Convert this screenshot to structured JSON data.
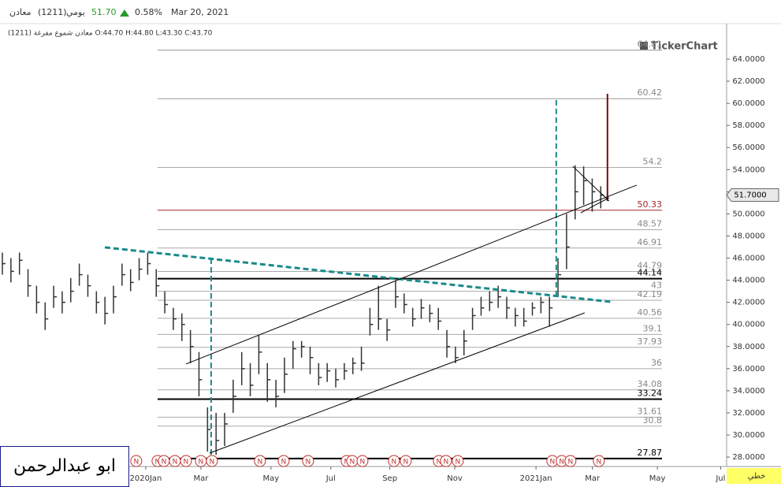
{
  "header": {
    "symbol": "معادن",
    "code": "(1211)",
    "period": "يومي",
    "price": "51.70",
    "change": "0.58%",
    "date": "Mar 20, 2021",
    "ohlc": "معادن شموع مفرغة (1211) O:44.70 H:44.80 L:43.30 C:43.70",
    "watermark": "TickerChart",
    "chart_style": "خطي",
    "author": "ابو عبدالرحمن"
  },
  "chart_data": {
    "type": "ohlc",
    "color": "#333333",
    "close": [
      45.5,
      44.8,
      45.8,
      43.5,
      42.0,
      40.5,
      42.5,
      42.0,
      43.0,
      44.5,
      43.5,
      42.0,
      41.0,
      42.5,
      44.5,
      43.8,
      45.0,
      45.5,
      43.5,
      41.8,
      40.5,
      40.0,
      38.0,
      35.0,
      30.5,
      29.5,
      31.0,
      33.5,
      36.0,
      34.5,
      37.5,
      35.0,
      33.5,
      35.5,
      37.8,
      38.0,
      37.0,
      35.2,
      35.8,
      35.0,
      35.8,
      36.5,
      36.5,
      40.0,
      40.5,
      39.5,
      42.5,
      41.8,
      40.5,
      41.5,
      41.0,
      40.3,
      38.0,
      37.0,
      38.5,
      40.8,
      41.5,
      42.0,
      42.5,
      41.5,
      40.8,
      40.3,
      41.5,
      42.0,
      41.5,
      44.5,
      47.0,
      52.0,
      53.0,
      52.0,
      51.7
    ],
    "high": [
      46.5,
      46.0,
      46.5,
      45.0,
      43.5,
      42.0,
      43.5,
      43.0,
      44.2,
      45.5,
      44.5,
      43.0,
      42.5,
      43.5,
      45.5,
      45.0,
      46.0,
      46.5,
      45.0,
      43.0,
      41.5,
      41.0,
      39.5,
      37.5,
      32.5,
      32.0,
      32.0,
      35.0,
      37.5,
      36.5,
      39.0,
      36.5,
      35.0,
      37.0,
      38.5,
      38.5,
      38.0,
      36.5,
      36.5,
      36.0,
      36.5,
      37.0,
      38.0,
      41.5,
      43.5,
      40.5,
      44.0,
      42.8,
      41.5,
      42.3,
      41.8,
      41.5,
      39.5,
      38.0,
      39.5,
      41.5,
      42.5,
      43.0,
      43.5,
      42.5,
      41.5,
      41.5,
      42.0,
      42.5,
      42.5,
      46.0,
      50.0,
      54.4,
      54.3,
      53.2,
      52.5
    ],
    "low": [
      44.5,
      43.8,
      44.5,
      42.5,
      41.0,
      39.5,
      41.5,
      41.0,
      42.0,
      43.5,
      42.5,
      41.0,
      40.0,
      41.0,
      43.5,
      43.0,
      44.0,
      44.5,
      42.5,
      41.0,
      39.5,
      38.5,
      36.5,
      33.5,
      28.5,
      28.2,
      29.0,
      32.0,
      34.5,
      33.5,
      35.5,
      33.0,
      32.5,
      33.8,
      36.0,
      37.0,
      35.5,
      34.5,
      34.8,
      34.3,
      35.0,
      35.5,
      35.8,
      39.0,
      39.5,
      38.5,
      41.5,
      41.0,
      39.8,
      40.5,
      40.2,
      39.5,
      37.0,
      36.5,
      37.2,
      39.5,
      40.8,
      41.2,
      41.5,
      40.5,
      39.8,
      39.8,
      40.8,
      41.0,
      39.8,
      42.5,
      45.0,
      49.5,
      50.8,
      50.2,
      50.5
    ],
    "xlim": [
      0,
      85
    ],
    "xticks": [
      {
        "value": 17.05,
        "label": "2020Jan"
      },
      {
        "value": 23.5,
        "label": "Mar"
      },
      {
        "value": 31.7,
        "label": "May"
      },
      {
        "value": 38.7,
        "label": "Jul"
      },
      {
        "value": 45.6,
        "label": "Sep"
      },
      {
        "value": 53.2,
        "label": "Nov"
      },
      {
        "value": 62.7,
        "label": "2021Jan"
      },
      {
        "value": 69.3,
        "label": "Mar"
      },
      {
        "value": 76.9,
        "label": "May"
      },
      {
        "value": 84.3,
        "label": "Jul"
      }
    ],
    "ylim": [
      27.15,
      66.85
    ],
    "yticks": [
      {
        "value": 28,
        "label": "28.0000"
      },
      {
        "value": 30,
        "label": "30.0000"
      },
      {
        "value": 32,
        "label": "32.0000"
      },
      {
        "value": 34,
        "label": "34.0000"
      },
      {
        "value": 36,
        "label": "36.0000"
      },
      {
        "value": 38,
        "label": "38.0000"
      },
      {
        "value": 40,
        "label": "40.0000"
      },
      {
        "value": 42,
        "label": "42.0000"
      },
      {
        "value": 44,
        "label": "44.0000"
      },
      {
        "value": 46,
        "label": "46.0000"
      },
      {
        "value": 48,
        "label": "48.0000"
      },
      {
        "value": 50,
        "label": "50.0000"
      },
      {
        "value": 52,
        "label": "52.0000"
      },
      {
        "value": 54,
        "label": "54.0000"
      },
      {
        "value": 56,
        "label": "56.0000"
      },
      {
        "value": 58,
        "label": "58.0000"
      },
      {
        "value": 60,
        "label": "60.0000"
      },
      {
        "value": 62,
        "label": "62.0000"
      },
      {
        "value": 64,
        "label": "64.0000"
      }
    ],
    "last_price": {
      "value": 51.7,
      "label": "51.7000"
    },
    "levels": [
      {
        "value": 64.81,
        "color": "#999999",
        "width": 1
      },
      {
        "value": 60.42,
        "color": "#999999",
        "width": 1
      },
      {
        "value": 54.2,
        "color": "#aaaaaa",
        "width": 1
      },
      {
        "value": 50.33,
        "color": "#a02828",
        "width": 1
      },
      {
        "value": 48.57,
        "color": "#aaaaaa",
        "width": 1
      },
      {
        "value": 46.91,
        "color": "#aaaaaa",
        "width": 1
      },
      {
        "value": 44.79,
        "color": "#aaaaaa",
        "width": 1
      },
      {
        "value": 44.14,
        "color": "#000000",
        "width": 2
      },
      {
        "value": 43,
        "color": "#aaaaaa",
        "width": 1
      },
      {
        "value": 42.19,
        "color": "#aaaaaa",
        "width": 1
      },
      {
        "value": 40.56,
        "color": "#aaaaaa",
        "width": 1
      },
      {
        "value": 39.1,
        "color": "#aaaaaa",
        "width": 1
      },
      {
        "value": 37.93,
        "color": "#aaaaaa",
        "width": 1
      },
      {
        "value": 36,
        "color": "#aaaaaa",
        "width": 1
      },
      {
        "value": 34.08,
        "color": "#aaaaaa",
        "width": 1
      },
      {
        "value": 33.24,
        "color": "#000000",
        "width": 2
      },
      {
        "value": 31.61,
        "color": "#aaaaaa",
        "width": 1
      },
      {
        "value": 30.8,
        "color": "#aaaaaa",
        "width": 1
      },
      {
        "value": 27.87,
        "color": "#000000",
        "width": 2
      }
    ],
    "trendlines": [
      {
        "x": [
          12.26,
          71.43
        ],
        "y": [
          46.97,
          42.05
        ],
        "color": "#1a8a8a",
        "width": 3,
        "dash": true
      },
      {
        "x": [
          24.7,
          24.7
        ],
        "y": [
          45.97,
          28.15
        ],
        "color": "#1a8a8a",
        "width": 2,
        "dash": true
      },
      {
        "x": [
          65.07,
          65.07
        ],
        "y": [
          60.3,
          42.4
        ],
        "color": "#1a8a8a",
        "width": 2,
        "dash": true
      },
      {
        "x": [
          71.06,
          71.06
        ],
        "y": [
          60.86,
          51.17
        ],
        "color": "#7a0a0a",
        "width": 2,
        "dash": false
      },
      {
        "x": [
          21.75,
          74.47
        ],
        "y": [
          36.42,
          52.6
        ],
        "color": "#000000",
        "width": 1,
        "dash": false
      },
      {
        "x": [
          24.52,
          68.39
        ],
        "y": [
          28.36,
          41.05
        ],
        "color": "#000000",
        "width": 1,
        "dash": false
      },
      {
        "x": [
          67.0,
          71.24
        ],
        "y": [
          54.31,
          51.17
        ],
        "color": "#000000",
        "width": 1,
        "dash": false
      },
      {
        "x": [
          67.93,
          71.24
        ],
        "y": [
          50.1,
          51.46
        ],
        "color": "#000000",
        "width": 1,
        "dash": false
      }
    ],
    "news_markers": {
      "label": "N",
      "x": [
        15.94,
        18.43,
        19.17,
        20.46,
        21.75,
        23.5,
        24.79,
        30.41,
        33.18,
        36.04,
        40.55,
        41.2,
        42.4,
        46.08,
        47.47,
        51.34,
        52.17,
        53.55,
        64.61,
        65.71,
        66.73,
        70.05
      ]
    }
  }
}
